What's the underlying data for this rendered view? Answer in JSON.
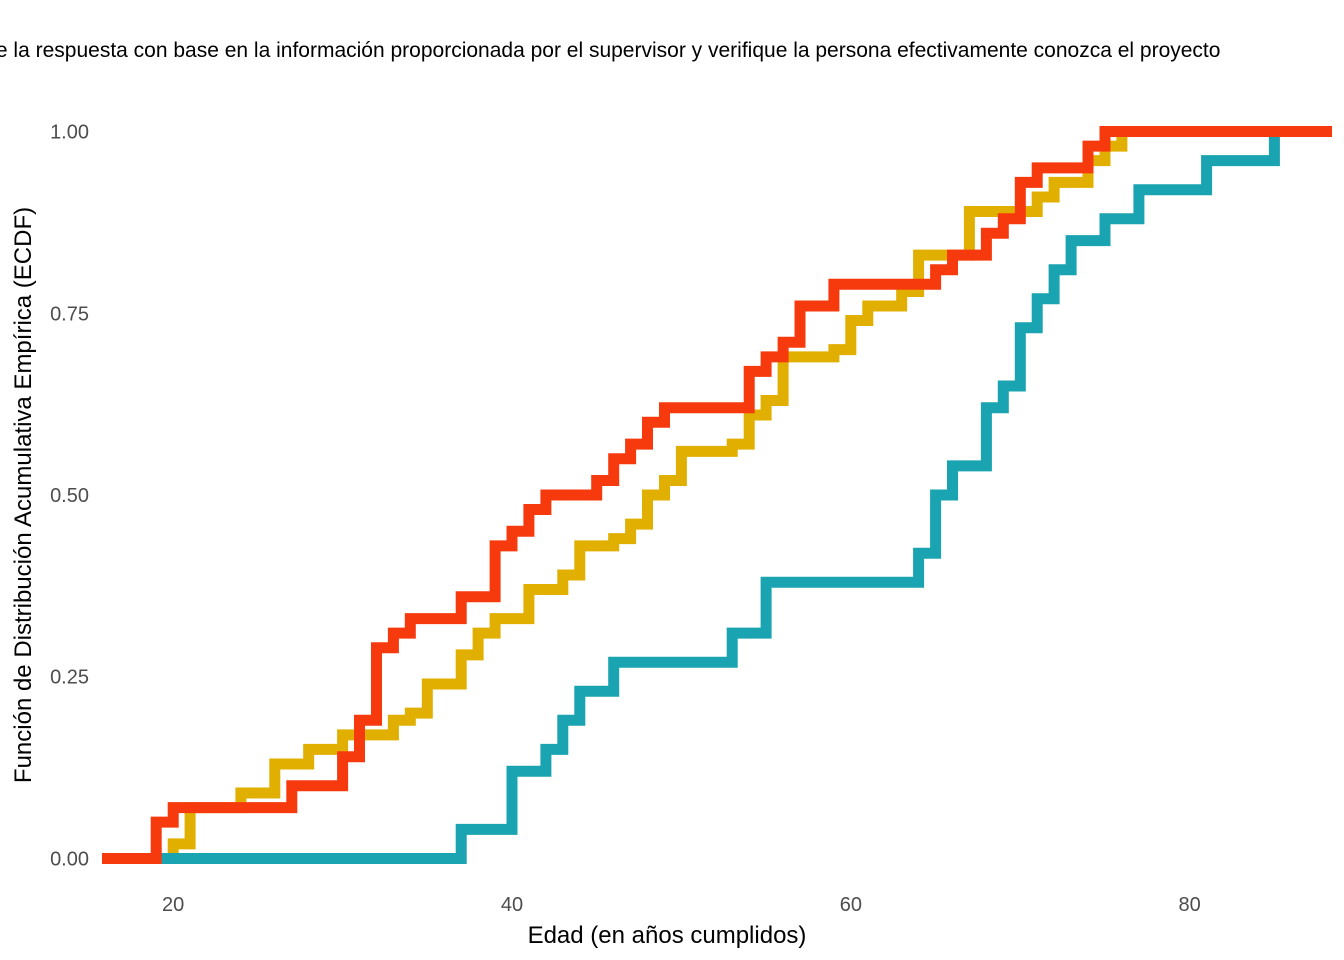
{
  "chart_data": {
    "type": "line",
    "subtype": "ecdf-step",
    "title": "Conteste la respuesta con base en la información proporcionada por el supervisor y verifique la persona efectivamente conozca el proyecto",
    "xlabel": "Edad (en años cumplidos)",
    "ylabel": "Función de Distribución Acumulativa Empírica (ECDF)",
    "xlim": [
      15.8,
      88.4
    ],
    "ylim": [
      -0.02,
      1.02
    ],
    "x_ticks": [
      20,
      40,
      60,
      80
    ],
    "y_ticks": [
      0,
      0.25,
      0.5,
      0.75,
      1
    ],
    "x_tick_labels": [
      "20",
      "40",
      "60",
      "80"
    ],
    "y_tick_labels": [
      "0.00",
      "0.25",
      "0.50",
      "0.75",
      "1.00"
    ],
    "grid": false,
    "legend": "none",
    "series": [
      {
        "color": "#E1AF00",
        "points": [
          [
            15.8,
            0
          ],
          [
            20,
            0
          ],
          [
            20,
            0.02
          ],
          [
            21,
            0.02
          ],
          [
            21,
            0.07
          ],
          [
            24,
            0.07
          ],
          [
            24,
            0.09
          ],
          [
            26,
            0.09
          ],
          [
            26,
            0.13
          ],
          [
            28,
            0.13
          ],
          [
            28,
            0.15
          ],
          [
            30,
            0.15
          ],
          [
            30,
            0.17
          ],
          [
            33,
            0.17
          ],
          [
            33,
            0.19
          ],
          [
            34,
            0.19
          ],
          [
            34,
            0.2
          ],
          [
            35,
            0.2
          ],
          [
            35,
            0.24
          ],
          [
            37,
            0.24
          ],
          [
            37,
            0.28
          ],
          [
            38,
            0.28
          ],
          [
            38,
            0.31
          ],
          [
            39,
            0.31
          ],
          [
            39,
            0.33
          ],
          [
            41,
            0.33
          ],
          [
            41,
            0.37
          ],
          [
            43,
            0.37
          ],
          [
            43,
            0.39
          ],
          [
            44,
            0.39
          ],
          [
            44,
            0.43
          ],
          [
            46,
            0.43
          ],
          [
            46,
            0.44
          ],
          [
            47,
            0.44
          ],
          [
            47,
            0.46
          ],
          [
            48,
            0.46
          ],
          [
            48,
            0.5
          ],
          [
            49,
            0.5
          ],
          [
            49,
            0.52
          ],
          [
            50,
            0.52
          ],
          [
            50,
            0.56
          ],
          [
            53,
            0.56
          ],
          [
            53,
            0.57
          ],
          [
            54,
            0.57
          ],
          [
            54,
            0.61
          ],
          [
            55,
            0.61
          ],
          [
            55,
            0.63
          ],
          [
            56,
            0.63
          ],
          [
            56,
            0.69
          ],
          [
            59,
            0.69
          ],
          [
            59,
            0.7
          ],
          [
            60,
            0.7
          ],
          [
            60,
            0.74
          ],
          [
            61,
            0.74
          ],
          [
            61,
            0.76
          ],
          [
            63,
            0.76
          ],
          [
            63,
            0.78
          ],
          [
            64,
            0.78
          ],
          [
            64,
            0.83
          ],
          [
            66,
            0.83
          ],
          [
            66,
            0.83
          ],
          [
            67,
            0.83
          ],
          [
            67,
            0.89
          ],
          [
            70,
            0.89
          ],
          [
            70,
            0.89
          ],
          [
            71,
            0.89
          ],
          [
            71,
            0.91
          ],
          [
            72,
            0.91
          ],
          [
            72,
            0.93
          ],
          [
            74,
            0.93
          ],
          [
            74,
            0.96
          ],
          [
            75,
            0.96
          ],
          [
            75,
            0.98
          ],
          [
            76,
            0.98
          ],
          [
            76,
            1.0
          ],
          [
            88.4,
            1.0
          ]
        ]
      },
      {
        "color": "#1AA3B0",
        "points": [
          [
            15.8,
            0
          ],
          [
            37,
            0
          ],
          [
            37,
            0.04
          ],
          [
            40,
            0.04
          ],
          [
            40,
            0.12
          ],
          [
            42,
            0.12
          ],
          [
            42,
            0.15
          ],
          [
            43,
            0.15
          ],
          [
            43,
            0.19
          ],
          [
            44,
            0.19
          ],
          [
            44,
            0.23
          ],
          [
            46,
            0.23
          ],
          [
            46,
            0.27
          ],
          [
            53,
            0.27
          ],
          [
            53,
            0.31
          ],
          [
            55,
            0.31
          ],
          [
            55,
            0.38
          ],
          [
            64,
            0.38
          ],
          [
            64,
            0.42
          ],
          [
            65,
            0.42
          ],
          [
            65,
            0.5
          ],
          [
            66,
            0.5
          ],
          [
            66,
            0.54
          ],
          [
            68,
            0.54
          ],
          [
            68,
            0.62
          ],
          [
            69,
            0.62
          ],
          [
            69,
            0.65
          ],
          [
            70,
            0.65
          ],
          [
            70,
            0.73
          ],
          [
            71,
            0.73
          ],
          [
            71,
            0.77
          ],
          [
            72,
            0.77
          ],
          [
            72,
            0.81
          ],
          [
            73,
            0.81
          ],
          [
            73,
            0.85
          ],
          [
            75,
            0.85
          ],
          [
            75,
            0.88
          ],
          [
            77,
            0.88
          ],
          [
            77,
            0.92
          ],
          [
            81,
            0.92
          ],
          [
            81,
            0.96
          ],
          [
            85,
            0.96
          ],
          [
            85,
            1.0
          ],
          [
            88.4,
            1.0
          ]
        ]
      },
      {
        "color": "#F73A0E",
        "points": [
          [
            15.8,
            0
          ],
          [
            19,
            0
          ],
          [
            19,
            0.05
          ],
          [
            20,
            0.05
          ],
          [
            20,
            0.07
          ],
          [
            27,
            0.07
          ],
          [
            27,
            0.1
          ],
          [
            30,
            0.1
          ],
          [
            30,
            0.14
          ],
          [
            31,
            0.14
          ],
          [
            31,
            0.19
          ],
          [
            32,
            0.19
          ],
          [
            32,
            0.29
          ],
          [
            33,
            0.29
          ],
          [
            33,
            0.31
          ],
          [
            34,
            0.31
          ],
          [
            34,
            0.33
          ],
          [
            37,
            0.33
          ],
          [
            37,
            0.36
          ],
          [
            39,
            0.36
          ],
          [
            39,
            0.43
          ],
          [
            40,
            0.43
          ],
          [
            40,
            0.45
          ],
          [
            41,
            0.45
          ],
          [
            41,
            0.48
          ],
          [
            42,
            0.48
          ],
          [
            42,
            0.5
          ],
          [
            45,
            0.5
          ],
          [
            45,
            0.52
          ],
          [
            46,
            0.52
          ],
          [
            46,
            0.55
          ],
          [
            47,
            0.55
          ],
          [
            47,
            0.57
          ],
          [
            48,
            0.57
          ],
          [
            48,
            0.6
          ],
          [
            49,
            0.6
          ],
          [
            49,
            0.62
          ],
          [
            54,
            0.62
          ],
          [
            54,
            0.67
          ],
          [
            55,
            0.67
          ],
          [
            55,
            0.69
          ],
          [
            56,
            0.69
          ],
          [
            56,
            0.71
          ],
          [
            57,
            0.71
          ],
          [
            57,
            0.76
          ],
          [
            59,
            0.76
          ],
          [
            59,
            0.79
          ],
          [
            65,
            0.79
          ],
          [
            65,
            0.81
          ],
          [
            66,
            0.81
          ],
          [
            66,
            0.83
          ],
          [
            68,
            0.83
          ],
          [
            68,
            0.86
          ],
          [
            69,
            0.86
          ],
          [
            69,
            0.88
          ],
          [
            70,
            0.88
          ],
          [
            70,
            0.93
          ],
          [
            71,
            0.93
          ],
          [
            71,
            0.95
          ],
          [
            74,
            0.95
          ],
          [
            74,
            0.98
          ],
          [
            75,
            0.98
          ],
          [
            75,
            1.0
          ],
          [
            88.4,
            1.0
          ]
        ]
      }
    ]
  }
}
